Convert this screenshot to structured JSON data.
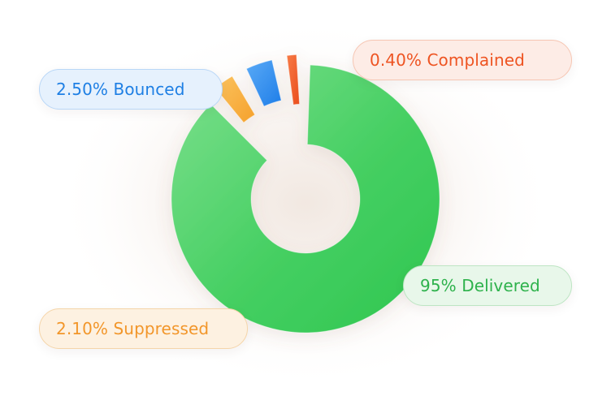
{
  "chart_data": {
    "type": "pie",
    "style": "donut",
    "slices": [
      {
        "label": "95% Delivered",
        "value": 95,
        "color": "#34c758"
      },
      {
        "label": "2.10% Suppressed",
        "value": 2.1,
        "color": "#f8a935"
      },
      {
        "label": "2.50% Bounced",
        "value": 2.5,
        "color": "#2f8cf0"
      },
      {
        "label": "0.40% Complained",
        "value": 0.4,
        "color": "#f0592b"
      }
    ],
    "labels": {
      "delivered": "95% Delivered",
      "suppressed": "2.10% Suppressed",
      "bounced": "2.50% Bounced",
      "complained": "0.40% Complained"
    }
  }
}
